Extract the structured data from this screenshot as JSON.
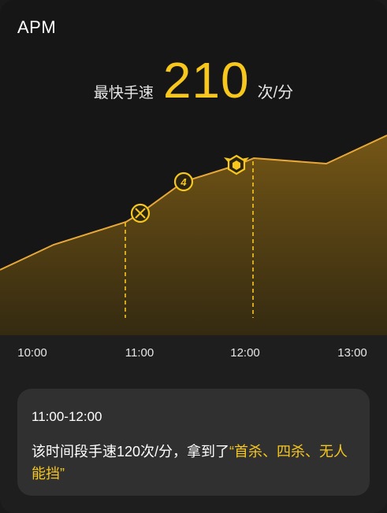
{
  "header": {
    "title": "APM",
    "speed_label": "最快手速",
    "speed_value": "210",
    "speed_unit": "次/分"
  },
  "chart_data": {
    "type": "area",
    "x_tick_labels": [
      "10:00",
      "11:00",
      "12:00",
      "13:00"
    ],
    "markers": [
      {
        "time": "11:00",
        "icon": "first-blood-icon"
      },
      {
        "time": "11:25",
        "icon": "quadra-kill-icon"
      },
      {
        "time": "12:00",
        "icon": "ace-icon"
      }
    ]
  },
  "info_card": {
    "time_range": "11:00-12:00",
    "text_prefix": "该时间段手速120次/分，拿到了",
    "text_highlight": "“首杀、四杀、无人能挡”"
  },
  "colors": {
    "accent": "#f7c71e",
    "line": "#e7a83a",
    "background": "#1e1e1e",
    "card": "#303030"
  }
}
